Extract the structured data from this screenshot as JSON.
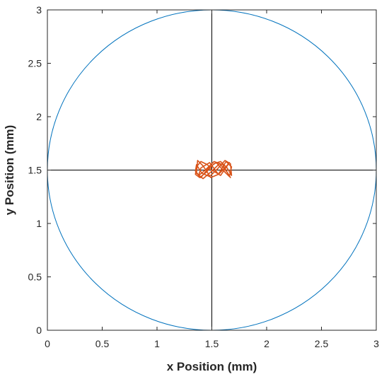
{
  "chart_data": {
    "type": "line",
    "title": "",
    "xlabel": "x Position (mm)",
    "ylabel": "y Position (mm)",
    "xlim": [
      0,
      3
    ],
    "ylim": [
      0,
      3
    ],
    "xticks": [
      0,
      0.5,
      1,
      1.5,
      2,
      2.5,
      3
    ],
    "yticks": [
      0,
      0.5,
      1,
      1.5,
      2,
      2.5,
      3
    ],
    "xtick_labels": [
      "0",
      "0.5",
      "1",
      "1.5",
      "2",
      "2.5",
      "3"
    ],
    "ytick_labels": [
      "0",
      "0.5",
      "1",
      "1.5",
      "2",
      "2.5",
      "3"
    ],
    "grid": false,
    "reference_lines": {
      "x": 1.5,
      "y": 1.5,
      "color": "#000000"
    },
    "circle": {
      "center": [
        1.5,
        1.5
      ],
      "radius": 1.5,
      "color": "#0072BD"
    },
    "trajectory": {
      "color": "#D95319",
      "x": [
        1.5,
        1.46,
        1.4,
        1.36,
        1.35,
        1.39,
        1.45,
        1.52,
        1.58,
        1.64,
        1.68,
        1.67,
        1.62,
        1.55,
        1.48,
        1.41,
        1.36,
        1.35,
        1.4,
        1.47,
        1.54,
        1.61,
        1.66,
        1.68,
        1.63,
        1.56,
        1.49,
        1.42,
        1.37,
        1.36,
        1.42,
        1.5,
        1.57,
        1.64,
        1.67,
        1.6,
        1.52,
        1.44,
        1.38,
        1.4,
        1.48,
        1.56,
        1.62,
        1.66,
        1.58,
        1.5
      ],
      "y": [
        1.5,
        1.55,
        1.58,
        1.53,
        1.46,
        1.43,
        1.48,
        1.56,
        1.58,
        1.52,
        1.45,
        1.56,
        1.59,
        1.51,
        1.44,
        1.47,
        1.55,
        1.49,
        1.43,
        1.52,
        1.57,
        1.49,
        1.44,
        1.53,
        1.58,
        1.46,
        1.43,
        1.54,
        1.59,
        1.47,
        1.42,
        1.49,
        1.56,
        1.48,
        1.43,
        1.55,
        1.58,
        1.5,
        1.45,
        1.52,
        1.57,
        1.46,
        1.52,
        1.57,
        1.45,
        1.5
      ]
    }
  }
}
